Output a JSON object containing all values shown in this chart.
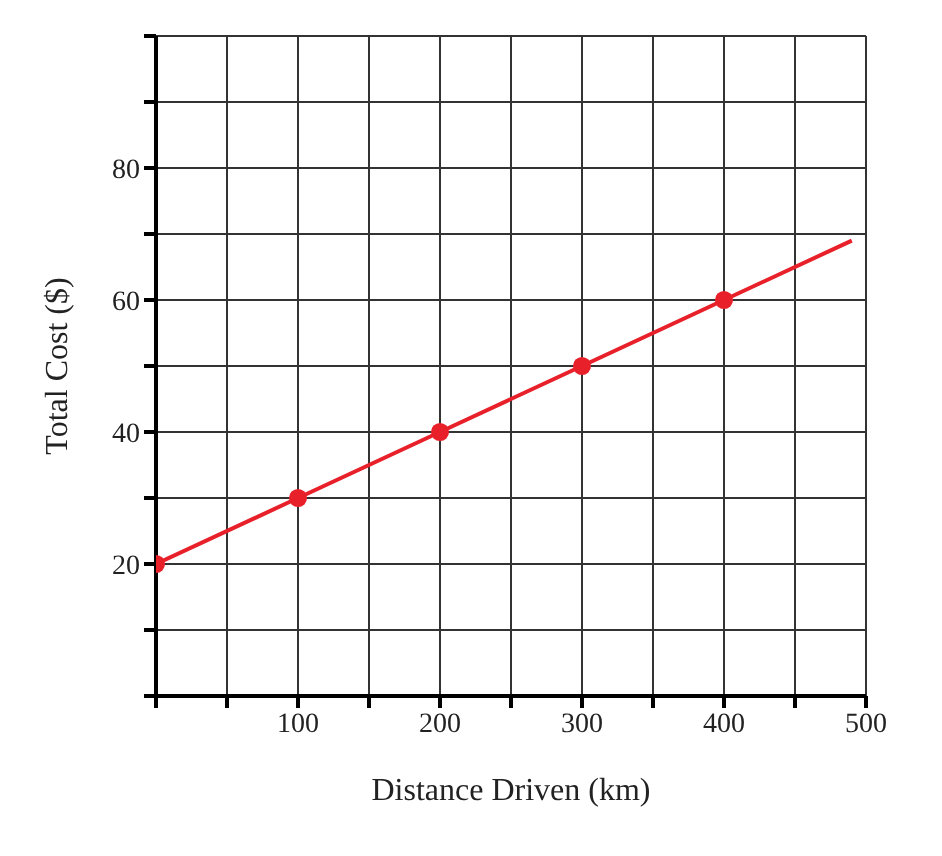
{
  "chart_data": {
    "type": "line",
    "xlabel": "Distance Driven (km)",
    "ylabel": "Total Cost ($)",
    "series": [
      {
        "color": "#e8202a",
        "x": [
          0,
          100,
          200,
          300,
          400,
          490
        ],
        "values": [
          20,
          30,
          40,
          50,
          60,
          69
        ],
        "marker": "none"
      },
      {
        "type": "scatter",
        "color": "#e8202a",
        "x": [
          0,
          100,
          200,
          300,
          400
        ],
        "values": [
          20,
          30,
          40,
          50,
          60
        ],
        "marker": "circle"
      }
    ],
    "xlim": [
      0,
      500
    ],
    "xticks": [
      {
        "value": 0,
        "label": null
      },
      {
        "value": 50,
        "label": null
      },
      100,
      {
        "value": 150,
        "label": null
      },
      200,
      {
        "value": 250,
        "label": null
      },
      300,
      {
        "value": 350,
        "label": null
      },
      400,
      {
        "value": 450,
        "label": null
      },
      500
    ],
    "ylim": [
      0,
      100
    ],
    "yticks": [
      {
        "value": 0,
        "label": null
      },
      {
        "value": 10,
        "label": null
      },
      20,
      {
        "value": 30,
        "label": null
      },
      40,
      {
        "value": 50,
        "label": null
      },
      60,
      {
        "value": 70,
        "label": null
      },
      80,
      {
        "value": 90,
        "label": null
      },
      {
        "value": 100,
        "label": null
      }
    ],
    "grid": true
  }
}
